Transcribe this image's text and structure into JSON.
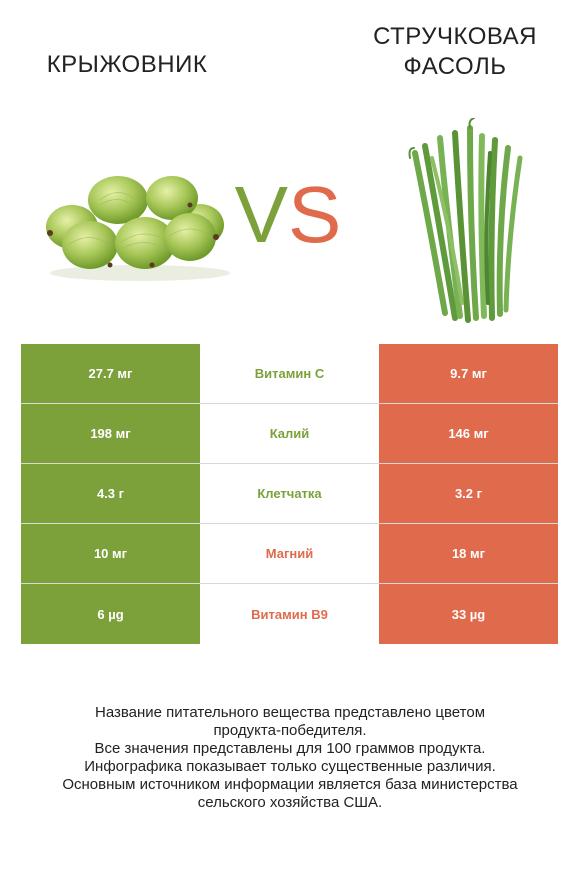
{
  "left_product": {
    "name": "КРЫЖОВНИК",
    "color": "#7ca13b"
  },
  "right_product": {
    "name_line1": "СТРУЧКОВАЯ",
    "name_line2": "ФАСОЛЬ",
    "color": "#e06a4c"
  },
  "vs": {
    "v": "V",
    "s": "S"
  },
  "rows": [
    {
      "left": "27.7 мг",
      "nutrient": "Витамин C",
      "right": "9.7 мг",
      "winner": "left"
    },
    {
      "left": "198 мг",
      "nutrient": "Калий",
      "right": "146 мг",
      "winner": "left"
    },
    {
      "left": "4.3 г",
      "nutrient": "Клетчатка",
      "right": "3.2 г",
      "winner": "left"
    },
    {
      "left": "10 мг",
      "nutrient": "Магний",
      "right": "18 мг",
      "winner": "right"
    },
    {
      "left": "6 µg",
      "nutrient": "Витамин B9",
      "right": "33 µg",
      "winner": "right"
    }
  ],
  "footnote": {
    "line1": "Название питательного вещества представлено цветом",
    "line2": "продукта-победителя.",
    "line3": "Все значения представлены для 100 граммов продукта.",
    "line4": "Инфографика показывает только существенные различия.",
    "line5": "Основным источником информации является база министерства",
    "line6": "сельского хозяйства США."
  }
}
